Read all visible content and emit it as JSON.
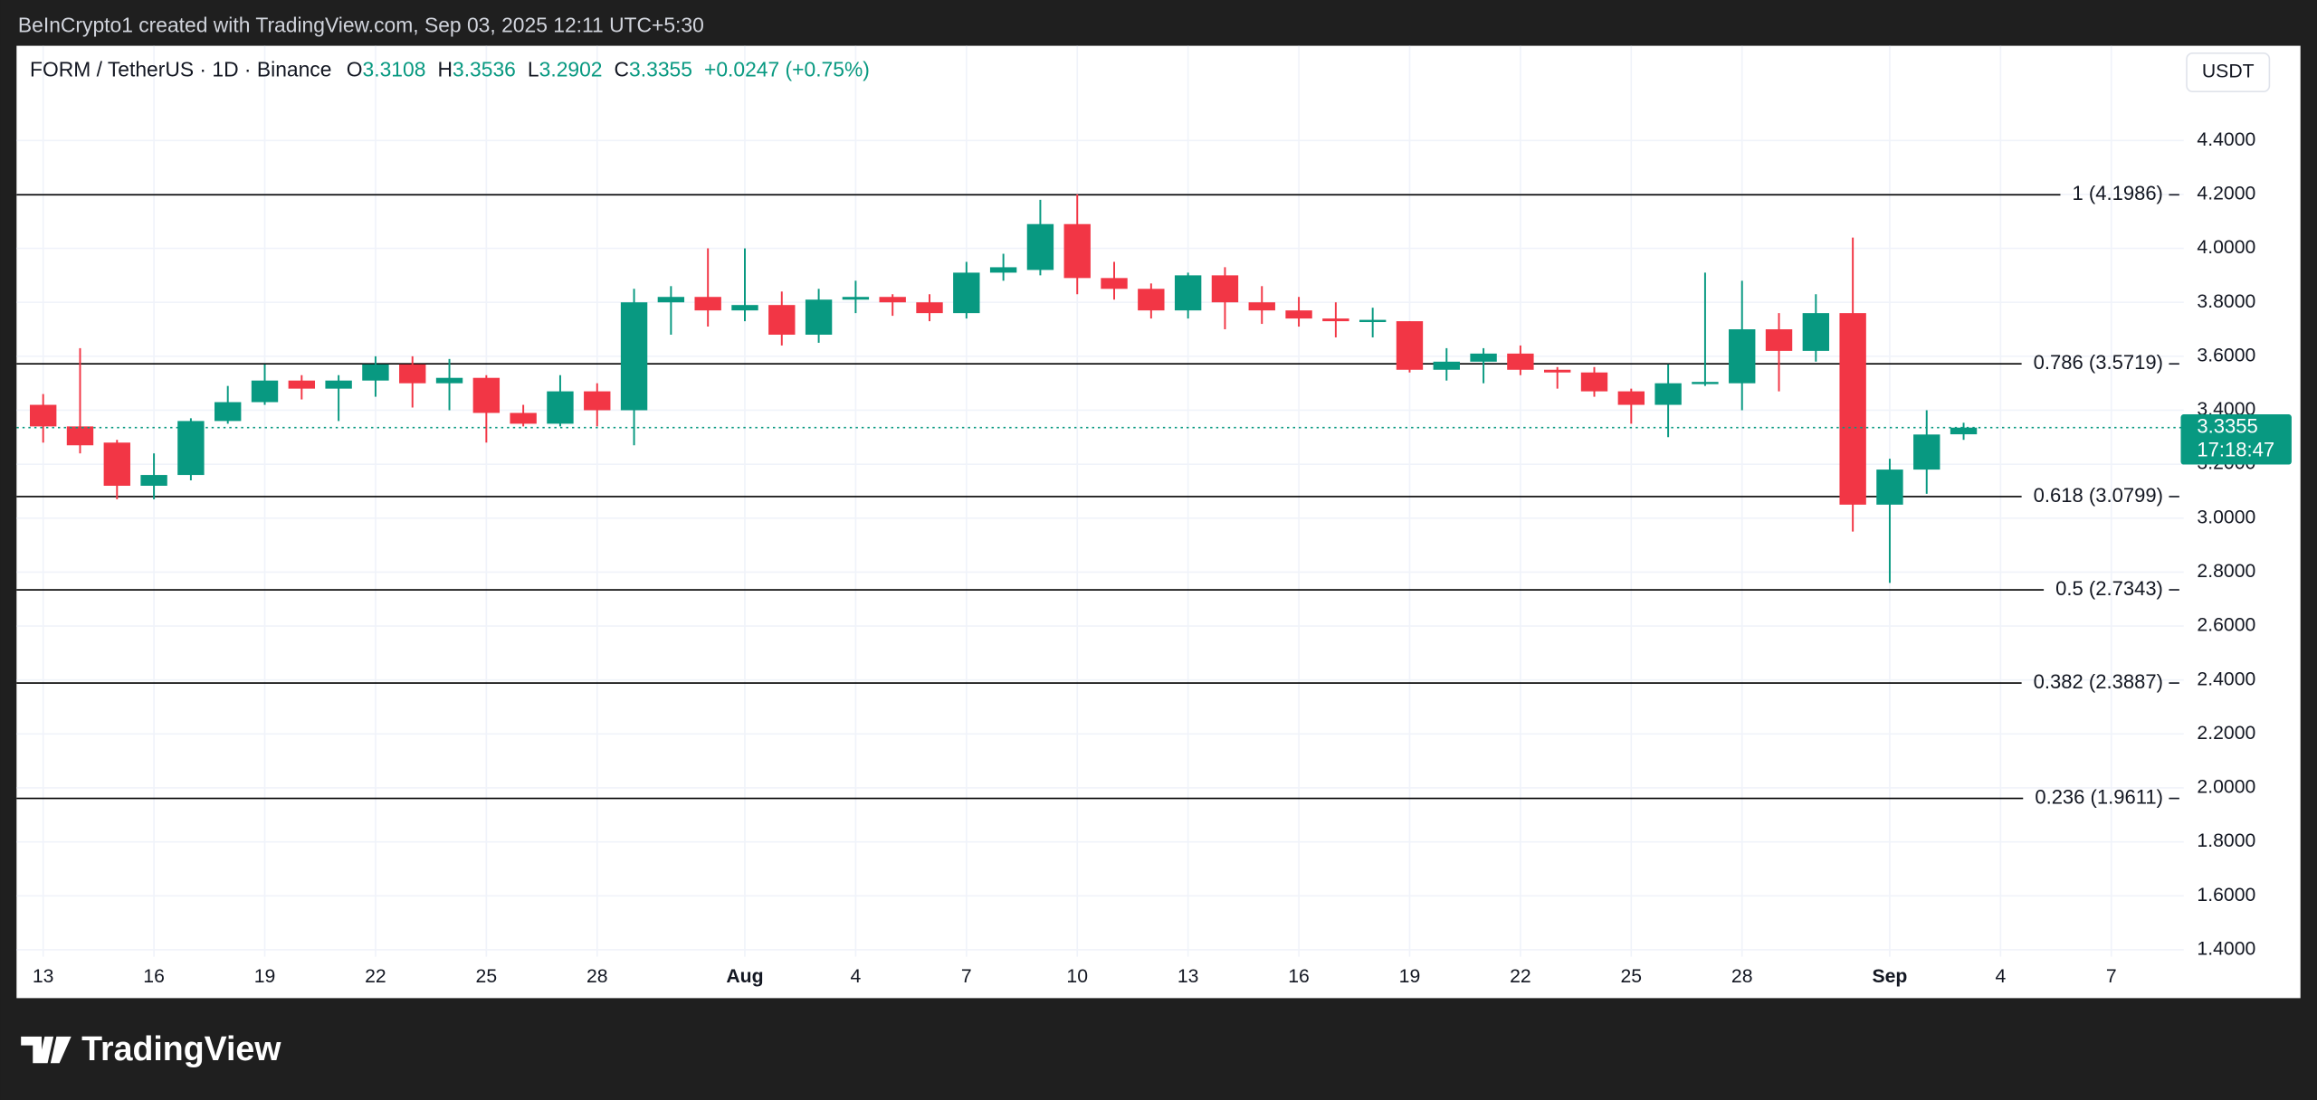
{
  "header": "BeInCrypto1 created with TradingView.com, Sep 03, 2025 12:11 UTC+5:30",
  "logo": "TradingView",
  "chart_data": {
    "type": "candlestick",
    "symbol": "FORM / TetherUS · 1D · Binance",
    "ohlc_labels": [
      "O",
      "H",
      "L",
      "C"
    ],
    "change": "+0.0247 (+0.75%)",
    "currency_button": "USDT",
    "countdown": "17:18:47",
    "up_color": "#089981",
    "down_color": "#f23645",
    "categories": [
      "13",
      null,
      null,
      "16",
      null,
      null,
      "19",
      null,
      null,
      "22",
      null,
      null,
      "25",
      null,
      null,
      "28",
      null,
      null,
      null,
      "Aug",
      null,
      null,
      "4",
      null,
      null,
      "7",
      null,
      null,
      "10",
      null,
      null,
      "13",
      null,
      null,
      "16",
      null,
      null,
      "19",
      null,
      null,
      "22",
      null,
      null,
      "25",
      null,
      null,
      "28",
      null,
      null,
      null,
      "Sep",
      null,
      null,
      "4",
      null,
      null,
      "7"
    ],
    "open": [
      3.42,
      3.34,
      3.28,
      3.12,
      3.16,
      3.36,
      3.43,
      3.51,
      3.48,
      3.51,
      3.57,
      3.5,
      3.52,
      3.39,
      3.35,
      3.47,
      3.4,
      3.8,
      3.82,
      3.77,
      3.79,
      3.68,
      3.81,
      3.82,
      3.8,
      3.76,
      3.91,
      3.92,
      4.09,
      3.89,
      3.85,
      3.77,
      3.9,
      3.8,
      3.77,
      3.74,
      3.73,
      3.73,
      3.55,
      3.58,
      3.61,
      3.55,
      3.54,
      3.47,
      3.42,
      3.5,
      3.5,
      3.7,
      3.62,
      3.76,
      3.05,
      3.18,
      3.3108,
      null,
      null,
      null,
      null
    ],
    "high": [
      3.46,
      3.63,
      3.29,
      3.24,
      3.37,
      3.49,
      3.57,
      3.53,
      3.53,
      3.6,
      3.6,
      3.59,
      3.53,
      3.42,
      3.53,
      3.5,
      3.85,
      3.86,
      4.0,
      4.0,
      3.84,
      3.85,
      3.88,
      3.83,
      3.83,
      3.95,
      3.98,
      4.18,
      4.2,
      3.95,
      3.87,
      3.91,
      3.93,
      3.86,
      3.82,
      3.8,
      3.78,
      3.73,
      3.63,
      3.63,
      3.64,
      3.56,
      3.56,
      3.48,
      3.57,
      3.91,
      3.88,
      3.76,
      3.83,
      4.04,
      3.22,
      3.4,
      3.3536,
      null,
      null,
      null,
      null
    ],
    "low": [
      3.28,
      3.24,
      3.07,
      3.07,
      3.14,
      3.35,
      3.42,
      3.44,
      3.36,
      3.45,
      3.41,
      3.4,
      3.28,
      3.34,
      3.34,
      3.34,
      3.27,
      3.68,
      3.71,
      3.73,
      3.64,
      3.65,
      3.76,
      3.75,
      3.73,
      3.74,
      3.88,
      3.9,
      3.83,
      3.81,
      3.74,
      3.74,
      3.7,
      3.72,
      3.71,
      3.67,
      3.67,
      3.54,
      3.51,
      3.5,
      3.53,
      3.48,
      3.45,
      3.35,
      3.3,
      3.49,
      3.4,
      3.47,
      3.58,
      2.95,
      2.76,
      3.09,
      3.2902,
      null,
      null,
      null,
      null
    ],
    "close": [
      3.34,
      3.27,
      3.12,
      3.16,
      3.36,
      3.43,
      3.51,
      3.48,
      3.51,
      3.57,
      3.5,
      3.52,
      3.39,
      3.35,
      3.47,
      3.4,
      3.8,
      3.82,
      3.77,
      3.79,
      3.68,
      3.81,
      3.82,
      3.8,
      3.76,
      3.91,
      3.93,
      4.09,
      3.89,
      3.85,
      3.77,
      3.9,
      3.8,
      3.77,
      3.74,
      3.73,
      3.735,
      3.55,
      3.58,
      3.61,
      3.55,
      3.54,
      3.47,
      3.42,
      3.5,
      3.505,
      3.7,
      3.62,
      3.76,
      3.05,
      3.18,
      3.31,
      3.3355,
      null,
      null,
      null,
      null
    ],
    "ylim": [
      1.374,
      4.751
    ],
    "yticks": [
      {
        "value": 1.4,
        "label": "1.4000"
      },
      {
        "value": 1.6,
        "label": "1.6000"
      },
      {
        "value": 1.8,
        "label": "1.8000"
      },
      {
        "value": 2.0,
        "label": "2.0000"
      },
      {
        "value": 2.2,
        "label": "2.2000"
      },
      {
        "value": 2.4,
        "label": "2.4000"
      },
      {
        "value": 2.6,
        "label": "2.6000"
      },
      {
        "value": 2.8,
        "label": "2.8000"
      },
      {
        "value": 3.0,
        "label": "3.0000"
      },
      {
        "value": 3.2,
        "label": "3.2000"
      },
      {
        "value": 3.4,
        "label": "3.4000"
      },
      {
        "value": 3.6,
        "label": "3.6000"
      },
      {
        "value": 3.8,
        "label": "3.8000"
      },
      {
        "value": 4.0,
        "label": "4.0000"
      },
      {
        "value": 4.2,
        "label": "4.2000"
      },
      {
        "value": 4.4,
        "label": "4.4000"
      }
    ],
    "levels": [
      {
        "value": 4.1986,
        "label": "1 (4.1986)"
      },
      {
        "value": 3.5719,
        "label": "0.786 (3.5719)"
      },
      {
        "value": 3.0799,
        "label": "0.618 (3.0799)"
      },
      {
        "value": 2.7343,
        "label": "0.5 (2.7343)"
      },
      {
        "value": 2.3887,
        "label": "0.382 (2.3887)"
      },
      {
        "value": 1.9611,
        "label": "0.236 (1.9611)"
      }
    ],
    "grid": true
  }
}
